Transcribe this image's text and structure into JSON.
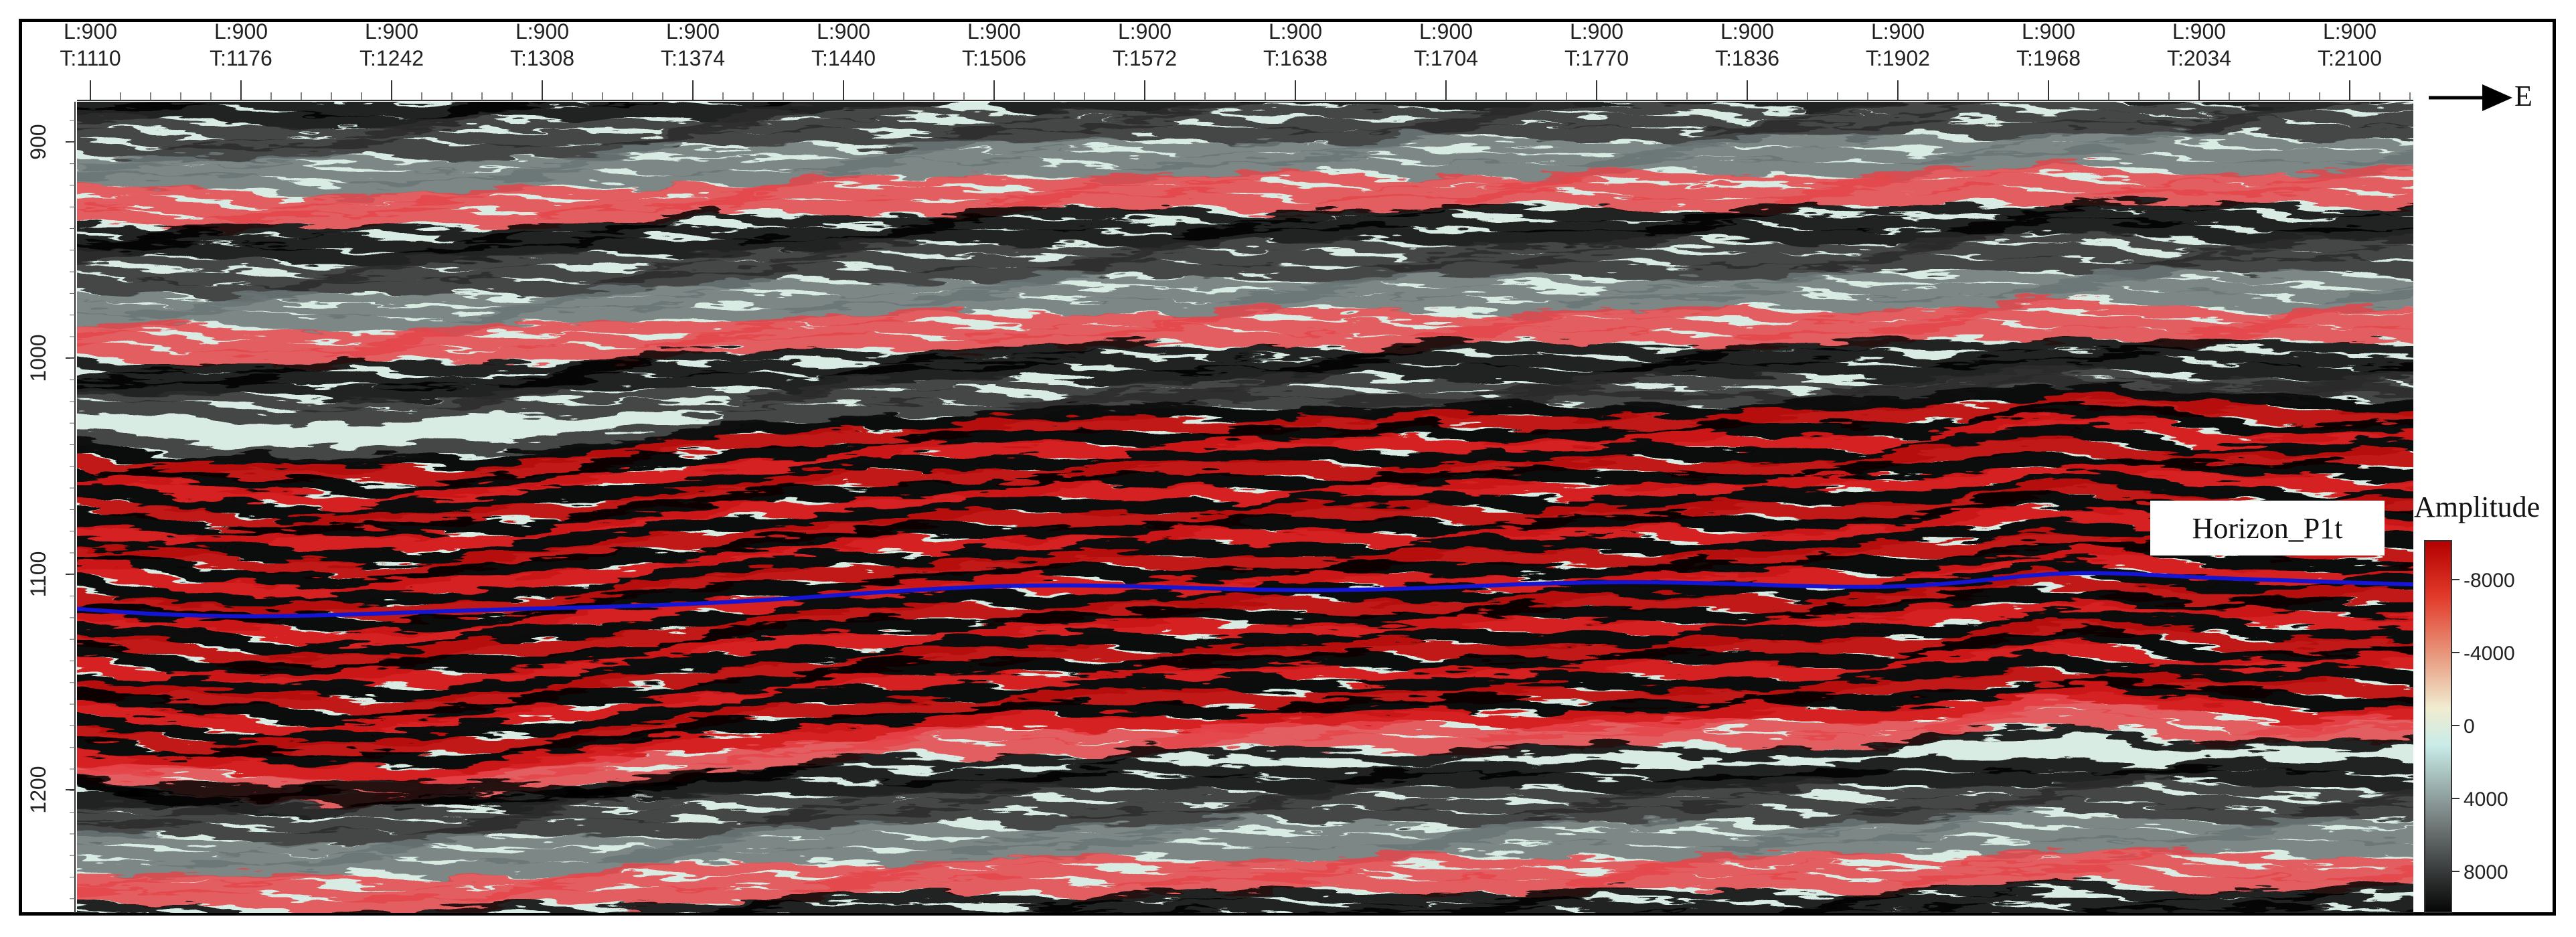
{
  "section": {
    "traces": [
      {
        "line": "L:900",
        "trace": "T:1110"
      },
      {
        "line": "L:900",
        "trace": "T:1176"
      },
      {
        "line": "L:900",
        "trace": "T:1242"
      },
      {
        "line": "L:900",
        "trace": "T:1308"
      },
      {
        "line": "L:900",
        "trace": "T:1374"
      },
      {
        "line": "L:900",
        "trace": "T:1440"
      },
      {
        "line": "L:900",
        "trace": "T:1506"
      },
      {
        "line": "L:900",
        "trace": "T:1572"
      },
      {
        "line": "L:900",
        "trace": "T:1638"
      },
      {
        "line": "L:900",
        "trace": "T:1704"
      },
      {
        "line": "L:900",
        "trace": "T:1770"
      },
      {
        "line": "L:900",
        "trace": "T:1836"
      },
      {
        "line": "L:900",
        "trace": "T:1902"
      },
      {
        "line": "L:900",
        "trace": "T:1968"
      },
      {
        "line": "L:900",
        "trace": "T:2034"
      },
      {
        "line": "L:900",
        "trace": "T:2100"
      }
    ],
    "depth_labels": [
      "900",
      "1000",
      "1100",
      "1200"
    ],
    "direction_label": "E",
    "horizon_label": "Horizon_P1t",
    "colorbar": {
      "title": "Amplitude",
      "tick_labels": [
        "-8000",
        "-4000",
        "0",
        "4000",
        "8000"
      ],
      "colors": [
        "#b30000",
        "#e23a2a",
        "#e9a68a",
        "#f1ecd0",
        "#c9ece8",
        "#6a7070",
        "#050505"
      ]
    },
    "horizon_color": "#1515d6"
  }
}
